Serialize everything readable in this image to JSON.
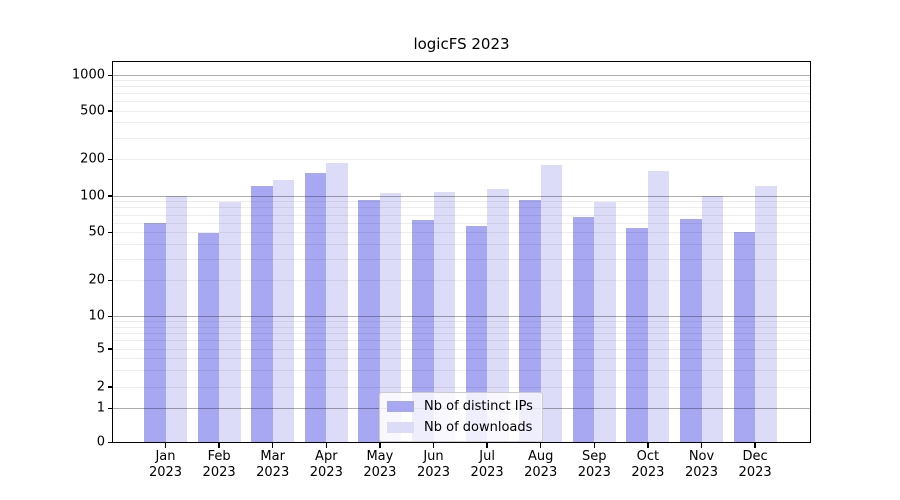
{
  "title": "logicFS 2023",
  "chart_data": {
    "type": "bar",
    "title": "logicFS 2023",
    "categories": [
      "Jan 2023",
      "Feb 2023",
      "Mar 2023",
      "Apr 2023",
      "May 2023",
      "Jun 2023",
      "Jul 2023",
      "Aug 2023",
      "Sep 2023",
      "Oct 2023",
      "Nov 2023",
      "Dec 2023"
    ],
    "x_months": [
      "Jan",
      "Feb",
      "Mar",
      "Apr",
      "May",
      "Jun",
      "Jul",
      "Aug",
      "Sep",
      "Oct",
      "Nov",
      "Dec"
    ],
    "x_year": "2023",
    "series": [
      {
        "name": "Nb of distinct IPs",
        "color": "#a8a8f2",
        "values": [
          60,
          49,
          119,
          153,
          92,
          63,
          56,
          92,
          67,
          54,
          64,
          50
        ]
      },
      {
        "name": "Nb of downloads",
        "color": "#dcdcf8",
        "values": [
          100,
          88,
          134,
          187,
          106,
          108,
          113,
          180,
          89,
          160,
          100,
          121
        ]
      }
    ],
    "yscale": "symlog",
    "yticks": [
      0,
      1,
      2,
      5,
      10,
      20,
      50,
      100,
      200,
      500,
      1000
    ],
    "ylim": [
      0,
      1300
    ],
    "grid": true,
    "legend_position": "lower center"
  },
  "legend": {
    "items": [
      {
        "label": "Nb of distinct IPs",
        "color": "#a8a8f2"
      },
      {
        "label": "Nb of downloads",
        "color": "#dcdcf8"
      }
    ]
  }
}
